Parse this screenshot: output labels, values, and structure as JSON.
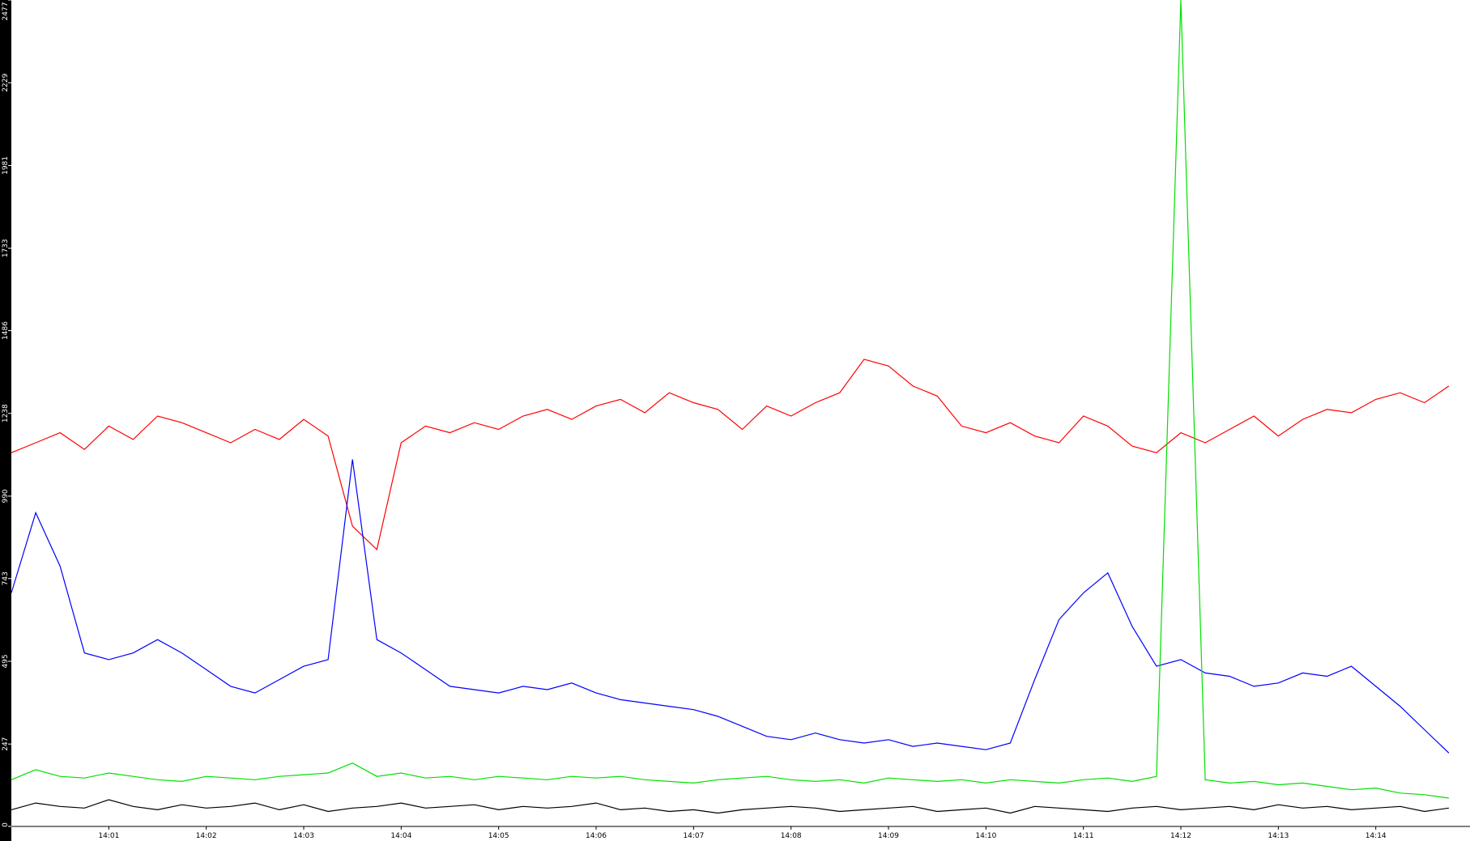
{
  "chart_data": {
    "type": "line",
    "x": [
      "14:00:00",
      "14:00:15",
      "14:00:30",
      "14:00:45",
      "14:01:00",
      "14:01:15",
      "14:01:30",
      "14:01:45",
      "14:02:00",
      "14:02:15",
      "14:02:30",
      "14:02:45",
      "14:03:00",
      "14:03:15",
      "14:03:30",
      "14:03:45",
      "14:04:00",
      "14:04:15",
      "14:04:30",
      "14:04:45",
      "14:05:00",
      "14:05:15",
      "14:05:30",
      "14:05:45",
      "14:06:00",
      "14:06:15",
      "14:06:30",
      "14:06:45",
      "14:07:00",
      "14:07:15",
      "14:07:30",
      "14:07:45",
      "14:08:00",
      "14:08:15",
      "14:08:30",
      "14:08:45",
      "14:09:00",
      "14:09:15",
      "14:09:30",
      "14:09:45",
      "14:10:00",
      "14:10:15",
      "14:10:30",
      "14:10:45",
      "14:11:00",
      "14:11:15",
      "14:11:30",
      "14:11:45",
      "14:12:00",
      "14:12:15",
      "14:12:30",
      "14:12:45",
      "14:13:00",
      "14:13:15",
      "14:13:30",
      "14:13:45",
      "14:14:00",
      "14:14:15",
      "14:14:30",
      "14:14:45"
    ],
    "xlim": [
      "14:00:00",
      "14:14:58"
    ],
    "xticks": [
      "14:01",
      "14:02",
      "14:03",
      "14:04",
      "14:05",
      "14:06",
      "14:07",
      "14:08",
      "14:09",
      "14:10",
      "14:11",
      "14:12",
      "14:13",
      "14:14"
    ],
    "ylim": [
      0,
      2477
    ],
    "yticks": [
      0,
      247,
      495,
      743,
      990,
      1238,
      1486,
      1733,
      1981,
      2229,
      2477
    ],
    "series": [
      {
        "color": "#ff0000",
        "values": [
          1120,
          1150,
          1180,
          1130,
          1200,
          1160,
          1230,
          1210,
          1180,
          1150,
          1190,
          1160,
          1220,
          1170,
          900,
          830,
          1150,
          1200,
          1180,
          1210,
          1190,
          1230,
          1250,
          1220,
          1260,
          1280,
          1240,
          1300,
          1270,
          1250,
          1190,
          1260,
          1230,
          1270,
          1300,
          1400,
          1380,
          1320,
          1290,
          1200,
          1180,
          1210,
          1170,
          1150,
          1230,
          1200,
          1140,
          1120,
          1180,
          1150,
          1190,
          1230,
          1170,
          1220,
          1250,
          1240,
          1280,
          1300,
          1270,
          1320
        ]
      },
      {
        "color": "#0000ff",
        "values": [
          700,
          940,
          780,
          520,
          500,
          520,
          560,
          520,
          470,
          420,
          400,
          440,
          480,
          500,
          1100,
          560,
          520,
          470,
          420,
          410,
          400,
          420,
          410,
          430,
          400,
          380,
          370,
          360,
          350,
          330,
          300,
          270,
          260,
          280,
          260,
          250,
          260,
          240,
          250,
          240,
          230,
          250,
          440,
          620,
          700,
          760,
          600,
          480,
          500,
          460,
          450,
          420,
          430,
          460,
          450,
          480,
          420,
          360,
          290,
          220
        ]
      },
      {
        "color": "#00e000",
        "values": [
          140,
          170,
          150,
          145,
          160,
          150,
          140,
          135,
          150,
          145,
          140,
          150,
          155,
          160,
          190,
          150,
          160,
          145,
          150,
          140,
          150,
          145,
          140,
          150,
          145,
          150,
          140,
          135,
          130,
          140,
          145,
          150,
          140,
          135,
          140,
          130,
          145,
          140,
          135,
          140,
          130,
          140,
          135,
          130,
          140,
          145,
          135,
          150,
          2477,
          140,
          130,
          135,
          125,
          130,
          120,
          110,
          115,
          100,
          95,
          85
        ]
      },
      {
        "color": "#000000",
        "values": [
          50,
          70,
          60,
          55,
          80,
          60,
          50,
          65,
          55,
          60,
          70,
          50,
          65,
          45,
          55,
          60,
          70,
          55,
          60,
          65,
          50,
          60,
          55,
          60,
          70,
          50,
          55,
          45,
          50,
          40,
          50,
          55,
          60,
          55,
          45,
          50,
          55,
          60,
          45,
          50,
          55,
          40,
          60,
          55,
          50,
          45,
          55,
          60,
          50,
          55,
          60,
          50,
          65,
          55,
          60,
          50,
          55,
          60,
          45,
          55
        ]
      }
    ]
  }
}
